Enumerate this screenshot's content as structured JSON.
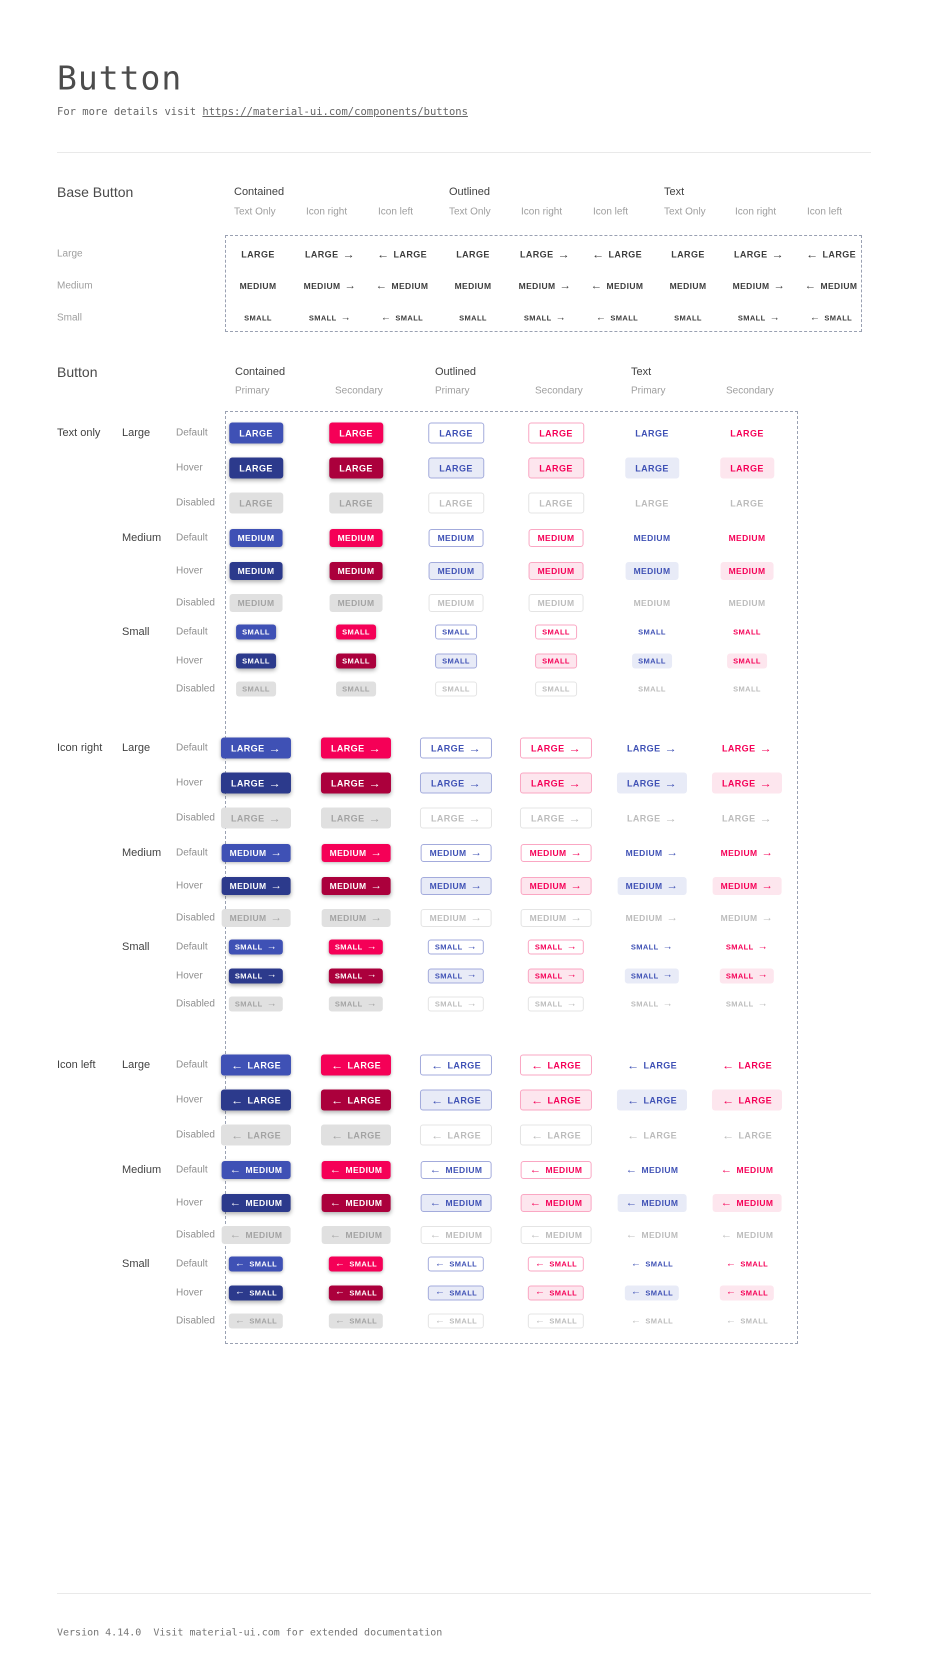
{
  "page": {
    "title": "Button",
    "subtitle_prefix": "For more details visit ",
    "subtitle_link": "https://material-ui.com/components/buttons",
    "footer": "Version 4.14.0  Visit material-ui.com for extended documentation"
  },
  "base_section": {
    "heading": "Base Button",
    "group_headers": [
      "Contained",
      "Outlined",
      "Text"
    ],
    "variant_headers": [
      "Text Only",
      "Icon right",
      "Icon left"
    ],
    "row_labels": [
      "Large",
      "Medium",
      "Small"
    ],
    "button_labels": [
      "LARGE",
      "MEDIUM",
      "SMALL"
    ]
  },
  "button_section": {
    "heading": "Button",
    "group_headers": [
      "Contained",
      "Outlined",
      "Text"
    ],
    "palette_headers": [
      "Primary",
      "Secondary"
    ],
    "icon_group_labels": [
      "Text only",
      "Icon right",
      "Icon left"
    ],
    "size_labels": [
      "Large",
      "Medium",
      "Small"
    ],
    "state_labels": [
      "Default",
      "Hover",
      "Disabled"
    ],
    "button_labels": [
      "LARGE",
      "MEDIUM",
      "SMALL"
    ]
  },
  "icons": {
    "arrow_right_glyph": "→",
    "arrow_left_glyph": "←"
  },
  "colors": {
    "primary": "#3f51b5",
    "primary_hover": "#2c3a8c",
    "secondary": "#f50057",
    "secondary_hover": "#ab003c",
    "disabled_bg": "#e0e0e0",
    "disabled_text": "#a3a3a3",
    "disabled_text_light": "#bcbcbc",
    "primary_tint": "#e8ebf7",
    "secondary_tint": "#fde6ee",
    "outline_primary": "#a3abdc",
    "outline_secondary": "#faa7c3",
    "dashed": "#9aa1b2"
  }
}
